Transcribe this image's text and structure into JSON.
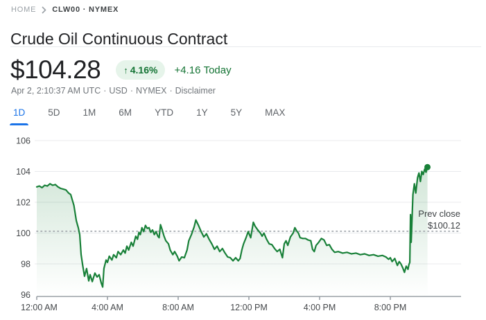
{
  "breadcrumb": {
    "home": "HOME",
    "current": "CLW00 · NYMEX"
  },
  "title": "Crude Oil Continuous Contract",
  "quote": {
    "price": "$104.28",
    "arrow": "↑",
    "change_percent": "4.16%",
    "change_amount": "+4.16",
    "change_period": "Today",
    "meta": {
      "timestamp": "Apr 2, 2:10:37 AM UTC",
      "currency": "USD",
      "exchange": "NYMEX",
      "disclaimer": "Disclaimer",
      "sep": "·"
    }
  },
  "tabs": {
    "active_index": 0,
    "items": [
      {
        "label": "1D"
      },
      {
        "label": "5D"
      },
      {
        "label": "1M"
      },
      {
        "label": "6M"
      },
      {
        "label": "YTD"
      },
      {
        "label": "1Y"
      },
      {
        "label": "5Y"
      },
      {
        "label": "MAX"
      }
    ]
  },
  "chart_data": {
    "type": "line",
    "title": "Crude Oil Continuous Contract 1D intraday price",
    "xlabel": "",
    "ylabel": "",
    "ylim": [
      96,
      106
    ],
    "x_range_hours": [
      0,
      24
    ],
    "grid": true,
    "y_ticks": [
      106,
      104,
      102,
      100,
      98,
      96
    ],
    "x_ticks": [
      {
        "h": 0,
        "label": "12:00 AM"
      },
      {
        "h": 4,
        "label": "4:00 AM"
      },
      {
        "h": 8,
        "label": "8:00 AM"
      },
      {
        "h": 12,
        "label": "12:00 PM"
      },
      {
        "h": 16,
        "label": "4:00 PM"
      },
      {
        "h": 20,
        "label": "8:00 PM"
      }
    ],
    "prev_close": {
      "label": "Prev close",
      "value_label": "$100.12",
      "value": 100.12
    },
    "last_price": 104.28,
    "colors": {
      "line": "#188038",
      "fill_top": "rgba(24,128,56,0.24)",
      "fill_bottom": "rgba(24,128,56,0)",
      "grid": "#e8eaed",
      "axis": "#9aa0a6",
      "dotted": "#9aa0a6",
      "tick_label": "#44474a",
      "annotation": "#3c4043"
    },
    "points": [
      [
        0,
        103.0
      ],
      [
        0.15,
        103.05
      ],
      [
        0.3,
        102.95
      ],
      [
        0.45,
        103.1
      ],
      [
        0.6,
        103.05
      ],
      [
        0.75,
        103.2
      ],
      [
        0.9,
        103.1
      ],
      [
        1.05,
        103.15
      ],
      [
        1.2,
        103.0
      ],
      [
        1.35,
        102.9
      ],
      [
        1.5,
        102.85
      ],
      [
        1.65,
        102.8
      ],
      [
        1.8,
        102.6
      ],
      [
        1.92,
        102.5
      ],
      [
        2.1,
        101.8
      ],
      [
        2.24,
        100.8
      ],
      [
        2.35,
        100.35
      ],
      [
        2.43,
        99.9
      ],
      [
        2.51,
        98.6
      ],
      [
        2.6,
        97.9
      ],
      [
        2.7,
        97.2
      ],
      [
        2.82,
        97.7
      ],
      [
        2.94,
        96.9
      ],
      [
        3.02,
        97.3
      ],
      [
        3.14,
        96.85
      ],
      [
        3.29,
        97.4
      ],
      [
        3.41,
        97.15
      ],
      [
        3.53,
        97.3
      ],
      [
        3.65,
        96.75
      ],
      [
        3.73,
        96.5
      ],
      [
        3.8,
        97.7
      ],
      [
        3.92,
        98.25
      ],
      [
        4.0,
        98.1
      ],
      [
        4.1,
        98.5
      ],
      [
        4.25,
        98.25
      ],
      [
        4.35,
        98.6
      ],
      [
        4.5,
        98.4
      ],
      [
        4.6,
        98.8
      ],
      [
        4.75,
        98.6
      ],
      [
        4.9,
        98.9
      ],
      [
        5.0,
        98.7
      ],
      [
        5.1,
        99.15
      ],
      [
        5.2,
        98.9
      ],
      [
        5.35,
        99.4
      ],
      [
        5.45,
        99.15
      ],
      [
        5.6,
        99.8
      ],
      [
        5.7,
        99.6
      ],
      [
        5.78,
        100.05
      ],
      [
        5.86,
        99.9
      ],
      [
        5.95,
        100.35
      ],
      [
        6.05,
        100.1
      ],
      [
        6.15,
        100.5
      ],
      [
        6.25,
        100.3
      ],
      [
        6.35,
        100.35
      ],
      [
        6.45,
        100.05
      ],
      [
        6.55,
        100.2
      ],
      [
        6.65,
        99.9
      ],
      [
        6.75,
        100.1
      ],
      [
        6.85,
        99.8
      ],
      [
        6.92,
        99.7
      ],
      [
        7.0,
        100.55
      ],
      [
        7.1,
        100.2
      ],
      [
        7.2,
        99.8
      ],
      [
        7.3,
        99.5
      ],
      [
        7.45,
        99.3
      ],
      [
        7.55,
        98.9
      ],
      [
        7.7,
        98.6
      ],
      [
        7.8,
        98.8
      ],
      [
        7.95,
        98.5
      ],
      [
        8.05,
        98.2
      ],
      [
        8.2,
        98.45
      ],
      [
        8.35,
        98.4
      ],
      [
        8.5,
        98.9
      ],
      [
        8.6,
        99.5
      ],
      [
        8.75,
        99.9
      ],
      [
        8.9,
        100.4
      ],
      [
        9.0,
        100.85
      ],
      [
        9.15,
        100.5
      ],
      [
        9.3,
        100.1
      ],
      [
        9.45,
        99.75
      ],
      [
        9.6,
        99.95
      ],
      [
        9.75,
        99.6
      ],
      [
        9.9,
        99.3
      ],
      [
        10.05,
        98.95
      ],
      [
        10.2,
        99.15
      ],
      [
        10.35,
        98.8
      ],
      [
        10.5,
        99.0
      ],
      [
        10.65,
        98.7
      ],
      [
        10.8,
        98.45
      ],
      [
        10.95,
        98.4
      ],
      [
        11.1,
        98.2
      ],
      [
        11.25,
        98.4
      ],
      [
        11.4,
        98.2
      ],
      [
        11.5,
        98.35
      ],
      [
        11.6,
        98.9
      ],
      [
        11.7,
        99.3
      ],
      [
        11.84,
        99.7
      ],
      [
        11.96,
        100.1
      ],
      [
        12.1,
        99.7
      ],
      [
        12.25,
        100.7
      ],
      [
        12.35,
        100.45
      ],
      [
        12.5,
        100.2
      ],
      [
        12.65,
        100.0
      ],
      [
        12.75,
        99.8
      ],
      [
        12.85,
        100.0
      ],
      [
        13.0,
        99.6
      ],
      [
        13.15,
        99.3
      ],
      [
        13.3,
        99.25
      ],
      [
        13.45,
        99.0
      ],
      [
        13.6,
        98.8
      ],
      [
        13.75,
        98.95
      ],
      [
        13.9,
        98.4
      ],
      [
        14.0,
        99.3
      ],
      [
        14.1,
        99.5
      ],
      [
        14.2,
        99.2
      ],
      [
        14.35,
        99.75
      ],
      [
        14.5,
        100.0
      ],
      [
        14.6,
        100.35
      ],
      [
        14.7,
        100.15
      ],
      [
        14.8,
        100.0
      ],
      [
        14.9,
        99.7
      ],
      [
        15.05,
        99.65
      ],
      [
        15.2,
        99.65
      ],
      [
        15.35,
        99.55
      ],
      [
        15.5,
        99.5
      ],
      [
        15.6,
        98.95
      ],
      [
        15.7,
        98.8
      ],
      [
        15.8,
        99.2
      ],
      [
        15.95,
        99.4
      ],
      [
        16.1,
        99.65
      ],
      [
        16.25,
        99.55
      ],
      [
        16.4,
        99.2
      ],
      [
        16.55,
        99.25
      ],
      [
        16.7,
        98.95
      ],
      [
        16.85,
        98.75
      ],
      [
        17.05,
        98.8
      ],
      [
        17.3,
        98.7
      ],
      [
        17.55,
        98.75
      ],
      [
        17.8,
        98.65
      ],
      [
        18.05,
        98.7
      ],
      [
        18.3,
        98.6
      ],
      [
        18.55,
        98.65
      ],
      [
        18.8,
        98.55
      ],
      [
        19.05,
        98.6
      ],
      [
        19.3,
        98.5
      ],
      [
        19.55,
        98.55
      ],
      [
        19.75,
        98.45
      ],
      [
        19.9,
        98.3
      ],
      [
        20.0,
        98.4
      ],
      [
        20.1,
        98.15
      ],
      [
        20.25,
        98.35
      ],
      [
        20.4,
        97.9
      ],
      [
        20.5,
        98.15
      ],
      [
        20.6,
        98.0
      ],
      [
        20.7,
        97.75
      ],
      [
        20.8,
        97.45
      ],
      [
        20.9,
        97.85
      ],
      [
        21.0,
        97.65
      ],
      [
        21.05,
        97.95
      ],
      [
        21.1,
        98.1
      ],
      [
        21.14,
        101.2
      ],
      [
        21.18,
        99.4
      ],
      [
        21.28,
        102.5
      ],
      [
        21.36,
        103.2
      ],
      [
        21.44,
        102.6
      ],
      [
        21.54,
        103.6
      ],
      [
        21.62,
        103.9
      ],
      [
        21.7,
        103.35
      ],
      [
        21.78,
        104.0
      ],
      [
        21.86,
        103.8
      ],
      [
        21.94,
        104.15
      ],
      [
        22.02,
        103.95
      ],
      [
        22.1,
        104.28
      ]
    ]
  }
}
